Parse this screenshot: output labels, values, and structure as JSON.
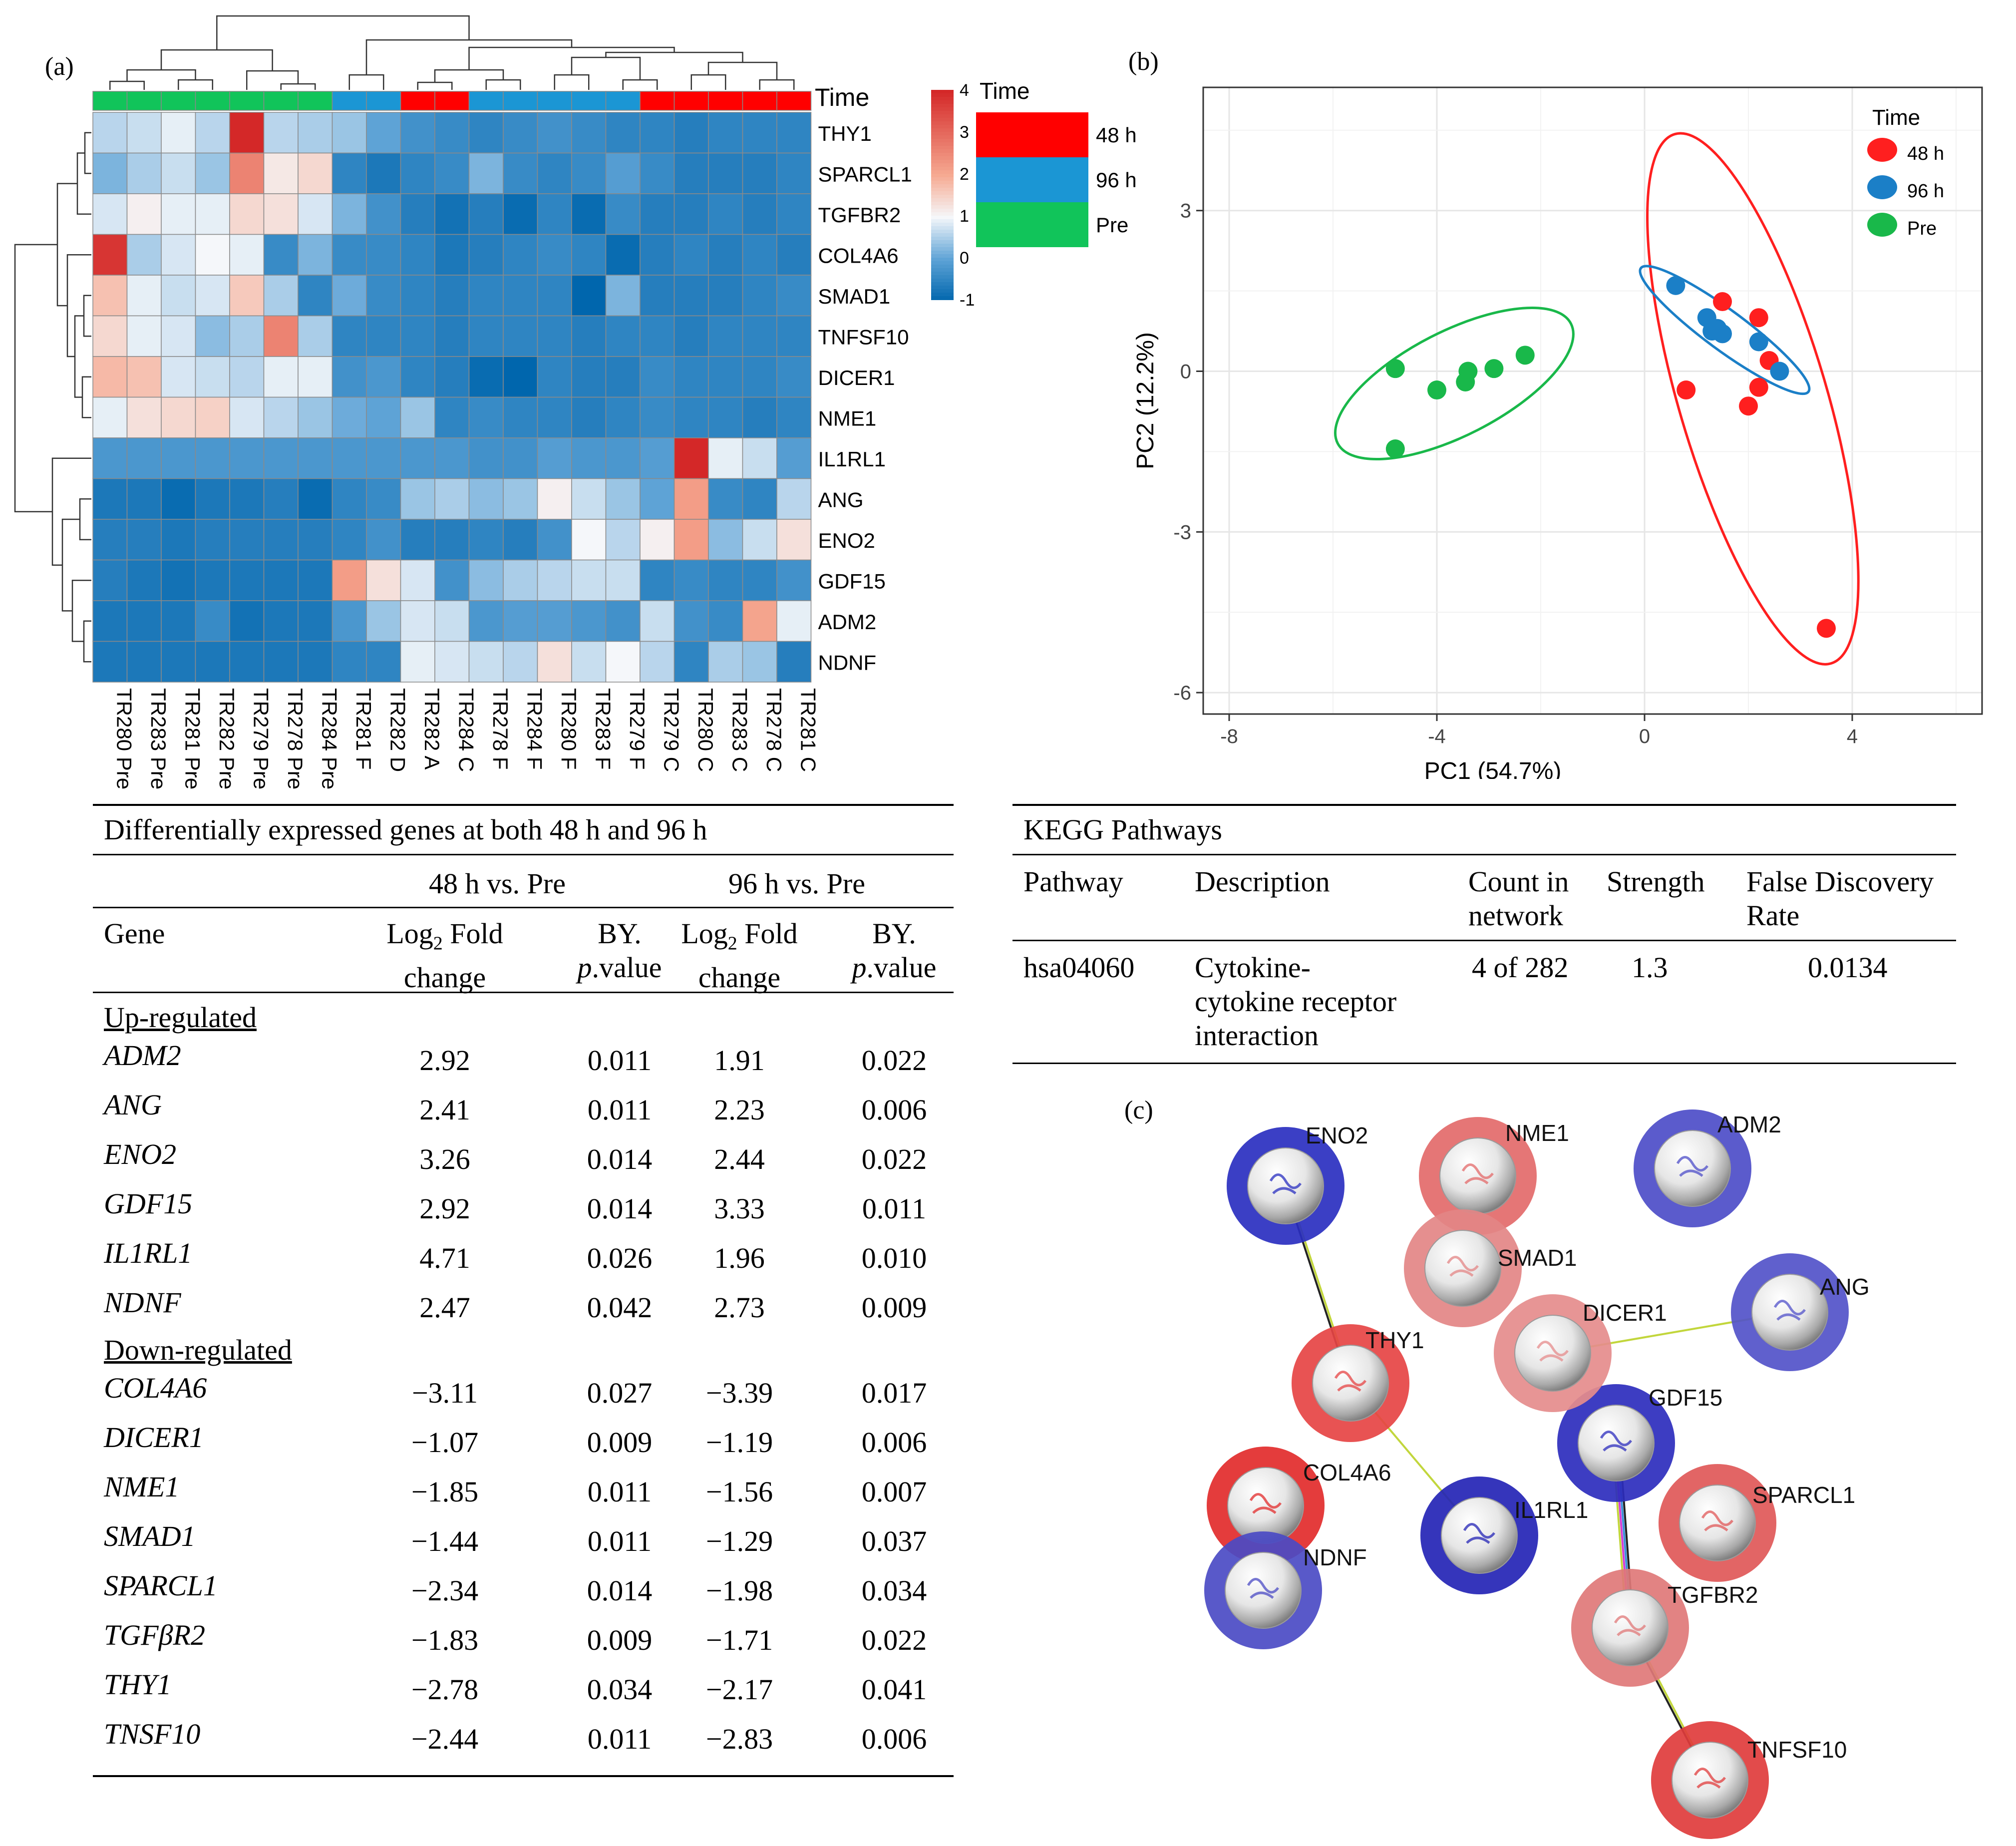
{
  "panel_labels": {
    "a": "(a)",
    "b": "(b)",
    "c": "(c)"
  },
  "heatmap": {
    "top_annotation_label": "Time",
    "legend_title": "Time",
    "legend_items": [
      {
        "label": "48 h",
        "color": "#ff0000"
      },
      {
        "label": "96 h",
        "color": "#1b96d4"
      },
      {
        "label": "Pre",
        "color": "#11c45a"
      }
    ],
    "scale_ticks": [
      "4",
      "3",
      "2",
      "1",
      "0",
      "-1"
    ],
    "scale_range": [
      -1,
      4
    ],
    "genes": [
      "THY1",
      "SPARCL1",
      "TGFBR2",
      "COL4A6",
      "SMAD1",
      "TNFSF10",
      "DICER1",
      "NME1",
      "IL1RL1",
      "ANG",
      "ENO2",
      "GDF15",
      "ADM2",
      "NDNF"
    ],
    "samples": [
      "TR280 Pre",
      "TR283 Pre",
      "TR281 Pre",
      "TR282 Pre",
      "TR279 Pre",
      "TR278 Pre",
      "TR284 Pre",
      "TR281 F",
      "TR282 D",
      "TR282 A",
      "TR284 C",
      "TR278 F",
      "TR284 F",
      "TR280 F",
      "TR283 F",
      "TR279 F",
      "TR279 C",
      "TR280 C",
      "TR283 C",
      "TR278 C",
      "TR281 C"
    ],
    "sample_groups": [
      "Pre",
      "Pre",
      "Pre",
      "Pre",
      "Pre",
      "Pre",
      "Pre",
      "96 h",
      "96 h",
      "48 h",
      "48 h",
      "96 h",
      "96 h",
      "96 h",
      "96 h",
      "96 h",
      "48 h",
      "48 h",
      "48 h",
      "48 h",
      "48 h"
    ],
    "values": [
      [
        0.6,
        0.7,
        0.9,
        0.6,
        4.0,
        0.6,
        0.5,
        0.4,
        0.0,
        -0.3,
        -0.4,
        -0.5,
        -0.4,
        -0.3,
        -0.4,
        -0.5,
        -0.5,
        -0.6,
        -0.5,
        -0.5,
        -0.5
      ],
      [
        0.2,
        0.5,
        0.7,
        0.4,
        2.6,
        1.2,
        1.4,
        -0.5,
        -0.7,
        -0.5,
        -0.4,
        0.2,
        -0.4,
        -0.5,
        -0.4,
        -0.1,
        -0.4,
        -0.6,
        -0.6,
        -0.6,
        -0.5
      ],
      [
        0.8,
        1.1,
        0.9,
        0.9,
        1.4,
        1.3,
        0.8,
        0.2,
        -0.3,
        -0.6,
        -0.8,
        -0.6,
        -0.9,
        -0.5,
        -0.9,
        -0.4,
        -0.6,
        -0.6,
        -0.5,
        -0.6,
        -0.5
      ],
      [
        3.8,
        0.5,
        0.8,
        1.0,
        0.9,
        -0.4,
        0.2,
        -0.4,
        -0.4,
        -0.5,
        -0.7,
        -0.6,
        -0.5,
        -0.4,
        -0.5,
        -0.9,
        -0.6,
        -0.5,
        -0.6,
        -0.5,
        -0.6
      ],
      [
        1.7,
        0.9,
        0.7,
        0.8,
        1.6,
        0.5,
        -0.5,
        0.1,
        -0.4,
        -0.5,
        -0.6,
        -0.5,
        -0.5,
        -0.5,
        -1.1,
        0.2,
        -0.6,
        -0.6,
        -0.6,
        -0.5,
        -0.4
      ],
      [
        1.4,
        0.9,
        0.8,
        0.3,
        0.5,
        2.6,
        0.5,
        -0.5,
        -0.5,
        -0.5,
        -0.6,
        -0.5,
        -0.5,
        -0.5,
        -0.6,
        -0.5,
        -0.5,
        -0.6,
        -0.5,
        -0.5,
        -0.5
      ],
      [
        1.8,
        1.7,
        0.8,
        0.7,
        0.6,
        0.9,
        0.9,
        -0.3,
        -0.2,
        -0.5,
        -0.6,
        -0.9,
        -1.0,
        -0.5,
        -0.6,
        -0.6,
        -0.4,
        -0.5,
        -0.5,
        -0.5,
        -0.4
      ],
      [
        0.9,
        1.3,
        1.4,
        1.5,
        0.8,
        0.6,
        0.4,
        0.1,
        0.0,
        0.4,
        -0.5,
        -0.4,
        -0.5,
        -0.5,
        -0.6,
        -0.5,
        -0.4,
        -0.5,
        -0.5,
        -0.6,
        -0.5
      ],
      [
        -0.2,
        -0.2,
        -0.2,
        -0.2,
        -0.2,
        -0.2,
        -0.2,
        -0.2,
        -0.2,
        -0.2,
        -0.2,
        -0.3,
        -0.3,
        -0.1,
        -0.2,
        -0.2,
        -0.1,
        4.0,
        0.9,
        0.7,
        -0.1
      ],
      [
        -0.7,
        -0.7,
        -0.9,
        -0.7,
        -0.7,
        -0.6,
        -0.9,
        -0.5,
        -0.4,
        0.4,
        0.5,
        0.3,
        0.4,
        1.1,
        0.7,
        0.4,
        0.0,
        2.2,
        -0.4,
        -0.5,
        0.6
      ],
      [
        -0.6,
        -0.6,
        -0.7,
        -0.6,
        -0.6,
        -0.6,
        -0.6,
        -0.5,
        -0.3,
        -0.6,
        -0.6,
        -0.5,
        -0.6,
        -0.3,
        1.0,
        0.6,
        1.1,
        2.2,
        0.3,
        0.7,
        1.3
      ],
      [
        -0.6,
        -0.7,
        -0.8,
        -0.7,
        -0.7,
        -0.7,
        -0.7,
        2.2,
        1.3,
        0.8,
        -0.3,
        0.3,
        0.5,
        0.6,
        0.7,
        0.7,
        -0.5,
        -0.4,
        -0.5,
        -0.5,
        -0.3
      ],
      [
        -0.7,
        -0.7,
        -0.7,
        -0.4,
        -0.8,
        -0.7,
        -0.7,
        -0.2,
        0.4,
        0.8,
        0.7,
        -0.2,
        -0.1,
        -0.1,
        -0.2,
        -0.3,
        0.7,
        -0.3,
        -0.4,
        2.1,
        0.9
      ],
      [
        -0.7,
        -0.7,
        -0.7,
        -0.7,
        -0.7,
        -0.7,
        -0.7,
        -0.5,
        -0.5,
        0.9,
        0.8,
        0.7,
        0.6,
        1.3,
        0.7,
        1.0,
        0.6,
        -0.5,
        0.5,
        0.4,
        -0.6
      ]
    ]
  },
  "chart_data": {
    "type": "scatter",
    "xlabel": "PC1 (54.7%)",
    "ylabel": "PC2 (12.2%)",
    "xlim": [
      -8.5,
      6.5
    ],
    "ylim": [
      -6.4,
      5.3
    ],
    "xticks": [
      "-8",
      "-4",
      "0",
      "4"
    ],
    "yticks": [
      "3",
      "0",
      "-3",
      "-6"
    ],
    "grid": true,
    "legend_title": "Time",
    "legend_position": "top-right",
    "series": [
      {
        "name": "48 h",
        "color": "#ff1f1f",
        "points": [
          [
            1.5,
            1.3
          ],
          [
            2.2,
            1.0
          ],
          [
            2.4,
            0.2
          ],
          [
            2.2,
            -0.3
          ],
          [
            0.8,
            -0.35
          ],
          [
            2.0,
            -0.65
          ],
          [
            3.5,
            -4.8
          ]
        ]
      },
      {
        "name": "96 h",
        "color": "#1b7fc7",
        "points": [
          [
            0.6,
            1.6
          ],
          [
            1.2,
            1.0
          ],
          [
            1.4,
            0.8
          ],
          [
            1.5,
            0.7
          ],
          [
            1.3,
            0.75
          ],
          [
            2.2,
            0.55
          ],
          [
            2.6,
            0.0
          ]
        ]
      },
      {
        "name": "Pre",
        "color": "#19b84a",
        "points": [
          [
            -4.8,
            0.05
          ],
          [
            -4.0,
            -0.35
          ],
          [
            -3.4,
            0.0
          ],
          [
            -3.45,
            -0.2
          ],
          [
            -2.9,
            0.05
          ],
          [
            -2.3,
            0.3
          ],
          [
            -4.8,
            -1.45
          ]
        ]
      }
    ]
  },
  "de_table": {
    "title": "Differentially expressed genes at both 48 h and 96 h",
    "group_48": "48 h vs. Pre",
    "group_96": "96 h vs. Pre",
    "col_gene": "Gene",
    "col_fc_line1": "Log",
    "col_fc_sub": "2",
    "col_fc_rest": " Fold",
    "col_fc_line2": "change",
    "col_p_line1": "BY.",
    "col_p_italic": "p",
    "col_p_rest": ".value",
    "section_up": "Up-regulated",
    "section_down": "Down-regulated",
    "up_rows": [
      {
        "gene": "ADM2",
        "fc48": "2.92",
        "p48": "0.011",
        "fc96": "1.91",
        "p96": "0.022"
      },
      {
        "gene": "ANG",
        "fc48": "2.41",
        "p48": "0.011",
        "fc96": "2.23",
        "p96": "0.006"
      },
      {
        "gene": "ENO2",
        "fc48": "3.26",
        "p48": "0.014",
        "fc96": "2.44",
        "p96": "0.022"
      },
      {
        "gene": "GDF15",
        "fc48": "2.92",
        "p48": "0.014",
        "fc96": "3.33",
        "p96": "0.011"
      },
      {
        "gene": "IL1RL1",
        "fc48": "4.71",
        "p48": "0.026",
        "fc96": "1.96",
        "p96": "0.010"
      },
      {
        "gene": "NDNF",
        "fc48": "2.47",
        "p48": "0.042",
        "fc96": "2.73",
        "p96": "0.009"
      }
    ],
    "down_rows": [
      {
        "gene": "COL4A6",
        "fc48": "−3.11",
        "p48": "0.027",
        "fc96": "−3.39",
        "p96": "0.017"
      },
      {
        "gene": "DICER1",
        "fc48": "−1.07",
        "p48": "0.009",
        "fc96": "−1.19",
        "p96": "0.006"
      },
      {
        "gene": "NME1",
        "fc48": "−1.85",
        "p48": "0.011",
        "fc96": "−1.56",
        "p96": "0.007"
      },
      {
        "gene": "SMAD1",
        "fc48": "−1.44",
        "p48": "0.011",
        "fc96": "−1.29",
        "p96": "0.037"
      },
      {
        "gene": "SPARCL1",
        "fc48": "−2.34",
        "p48": "0.014",
        "fc96": "−1.98",
        "p96": "0.034"
      },
      {
        "gene": "TGFβR2",
        "fc48": "−1.83",
        "p48": "0.009",
        "fc96": "−1.71",
        "p96": "0.022"
      },
      {
        "gene": "THY1",
        "fc48": "−2.78",
        "p48": "0.034",
        "fc96": "−2.17",
        "p96": "0.041"
      },
      {
        "gene": "TNSF10",
        "fc48": "−2.44",
        "p48": "0.011",
        "fc96": "−2.83",
        "p96": "0.006"
      }
    ]
  },
  "kegg_table": {
    "title": "KEGG Pathways",
    "col_pathway": "Pathway",
    "col_description": "Description",
    "col_count_1": "Count in",
    "col_count_2": "network",
    "col_strength": "Strength",
    "col_fdr_1": "False Discovery",
    "col_fdr_2": "Rate",
    "row": {
      "pathway": "hsa04060",
      "description_1": "Cytokine-",
      "description_2": "cytokine receptor",
      "description_3": "interaction",
      "count": "4 of 282",
      "strength": "1.3",
      "fdr": "0.0134"
    }
  },
  "network": {
    "nodes": [
      {
        "label": "ENO2",
        "ring": "#2a2fc0"
      },
      {
        "label": "NME1",
        "ring": "#e36a6a"
      },
      {
        "label": "ADM2",
        "ring": "#4d4dc8"
      },
      {
        "label": "SMAD1",
        "ring": "#e38585"
      },
      {
        "label": "ANG",
        "ring": "#5252c9"
      },
      {
        "label": "DICER1",
        "ring": "#e58c8c"
      },
      {
        "label": "THY1",
        "ring": "#e64444"
      },
      {
        "label": "GDF15",
        "ring": "#2d2dbd"
      },
      {
        "label": "COL4A6",
        "ring": "#e22b2b"
      },
      {
        "label": "IL1RL1",
        "ring": "#2424b5"
      },
      {
        "label": "SPARCL1",
        "ring": "#e05858"
      },
      {
        "label": "NDNF",
        "ring": "#4b4bc4"
      },
      {
        "label": "TGFBR2",
        "ring": "#e07878"
      },
      {
        "label": "TNFSF10",
        "ring": "#e03c3c"
      }
    ]
  }
}
